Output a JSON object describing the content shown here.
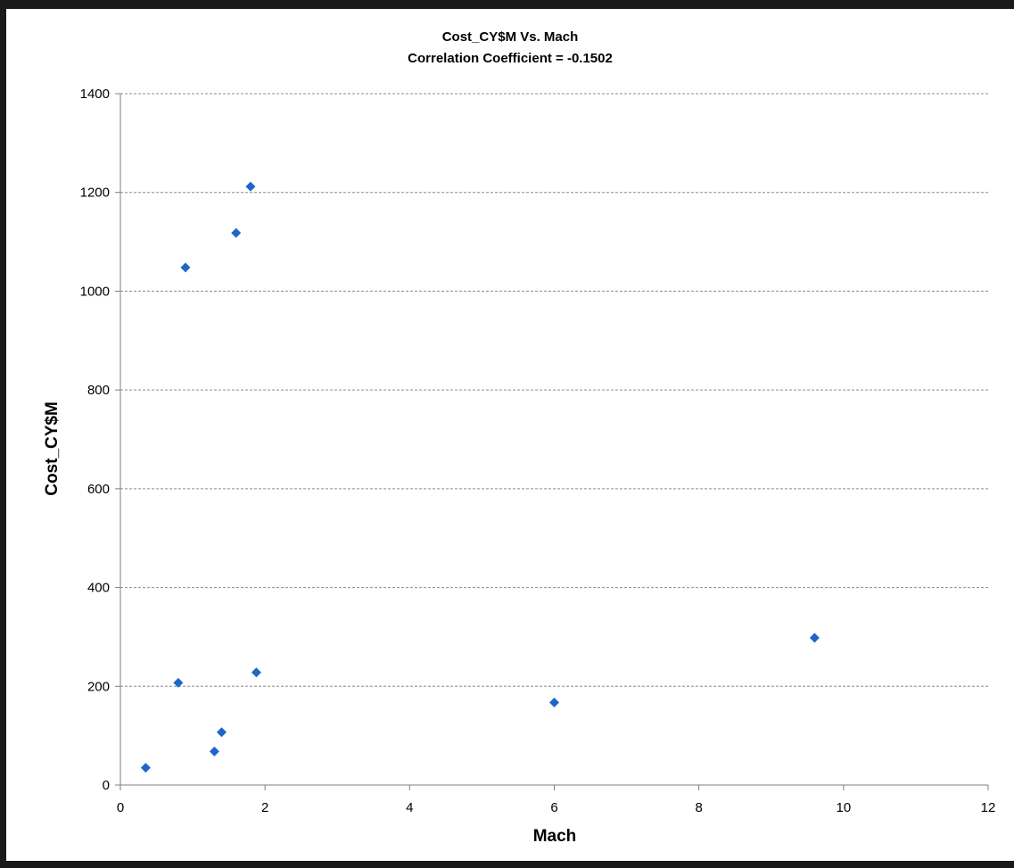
{
  "chart_data": {
    "type": "scatter",
    "title": "Cost_CY$M Vs. Mach",
    "subtitle": "Correlation Coefficient = -0.1502",
    "xlabel": "Mach",
    "ylabel": "Cost_CY$M",
    "xlim": [
      0,
      12
    ],
    "ylim": [
      0,
      1400
    ],
    "x_ticks": [
      0,
      2,
      4,
      6,
      8,
      10,
      12
    ],
    "y_ticks": [
      0,
      200,
      400,
      600,
      800,
      1000,
      1200,
      1400
    ],
    "grid": "horizontal-dashed",
    "legend": "none",
    "marker": "diamond",
    "marker_color": "#1f66c9",
    "points": [
      {
        "x": 0.35,
        "y": 35
      },
      {
        "x": 0.8,
        "y": 207
      },
      {
        "x": 0.9,
        "y": 1048
      },
      {
        "x": 1.3,
        "y": 68
      },
      {
        "x": 1.4,
        "y": 107
      },
      {
        "x": 1.6,
        "y": 1118
      },
      {
        "x": 1.8,
        "y": 1212
      },
      {
        "x": 1.88,
        "y": 228
      },
      {
        "x": 6.0,
        "y": 167
      },
      {
        "x": 9.6,
        "y": 298
      }
    ]
  }
}
